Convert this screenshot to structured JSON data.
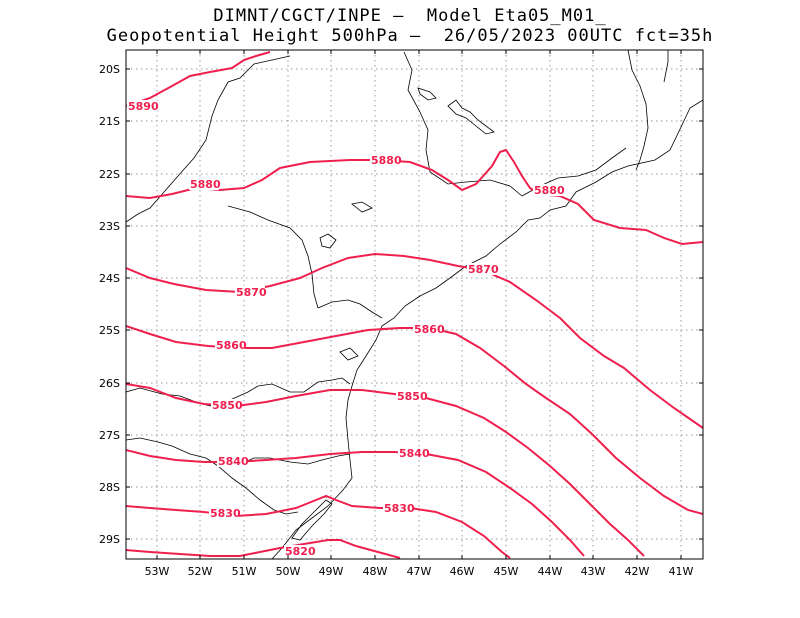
{
  "header": {
    "line1": "DIMNT/CGCT/INPE –  Model Eta05_M01_",
    "line2": "Geopotential Height 500hPa –  26/05/2023 00UTC fct=35h"
  },
  "axes": {
    "y_labels": [
      "20S",
      "21S",
      "22S",
      "23S",
      "24S",
      "25S",
      "26S",
      "27S",
      "28S",
      "29S"
    ],
    "x_labels": [
      "53W",
      "52W",
      "51W",
      "50W",
      "49W",
      "48W",
      "47W",
      "46W",
      "45W",
      "44W",
      "43W",
      "42W",
      "41W"
    ]
  },
  "contours": {
    "color": "#ef1f4e",
    "labels": [
      "5890",
      "5880",
      "5880",
      "5880",
      "5870",
      "5870",
      "5860",
      "5860",
      "5850",
      "5850",
      "5840",
      "5840",
      "5830",
      "5830",
      "5820"
    ]
  }
}
